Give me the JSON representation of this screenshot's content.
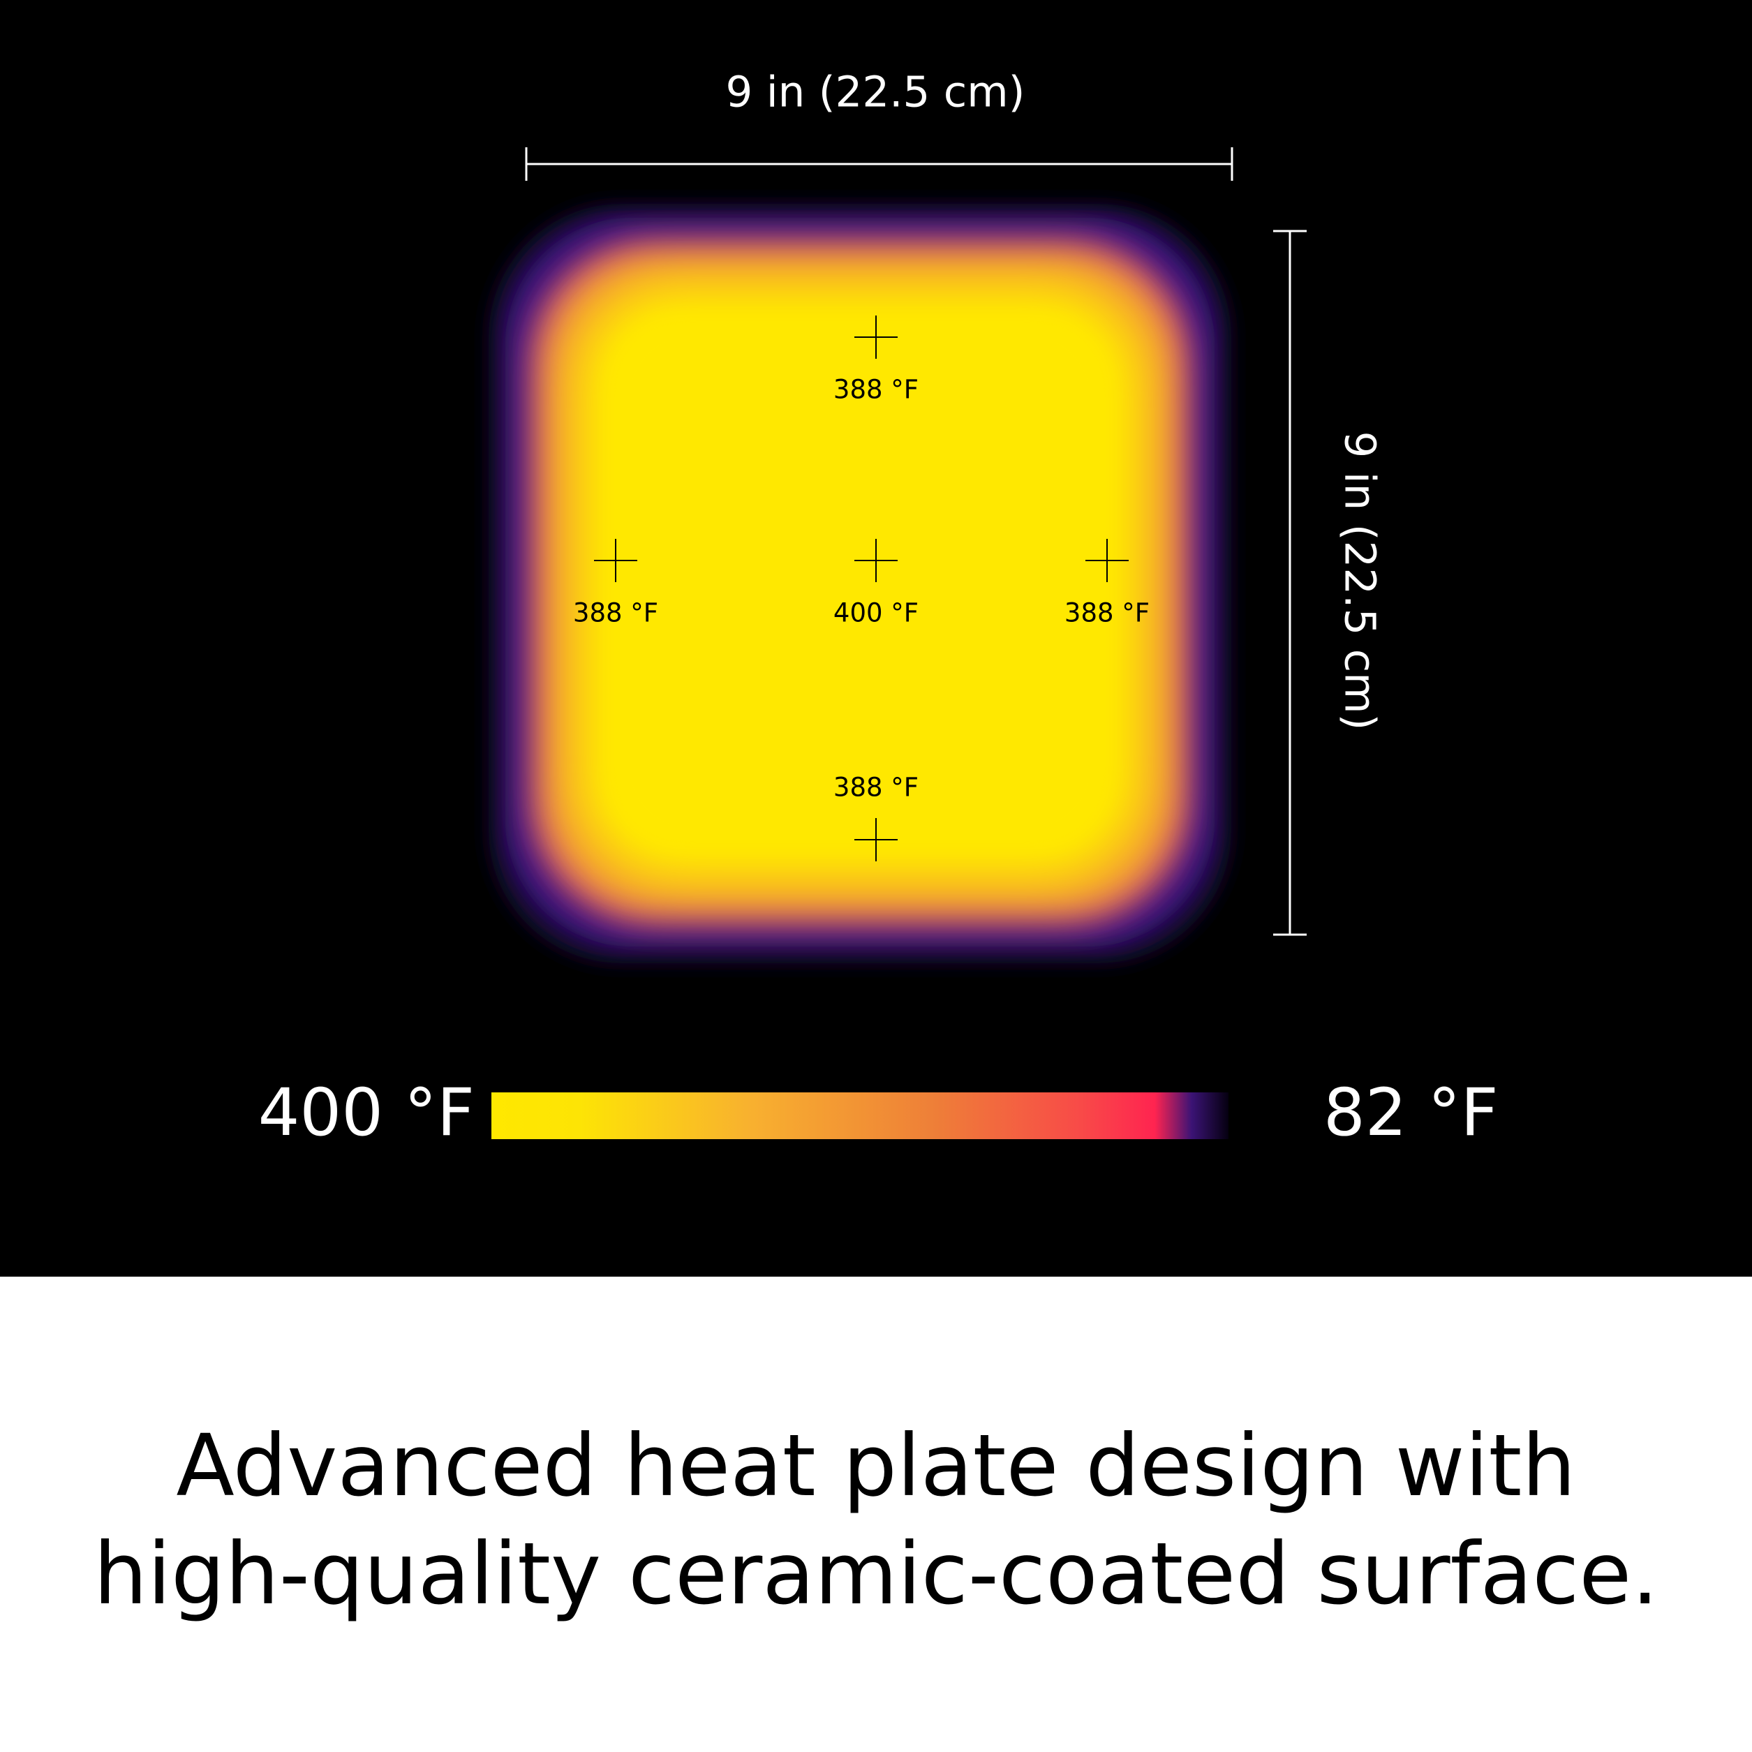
{
  "dimensions": {
    "width": "9 in (22.5 cm)",
    "height": "9 in (22.5 cm)"
  },
  "readings": [
    {
      "label": "388 °F"
    },
    {
      "label": "388 °F"
    },
    {
      "label": "400 °F"
    },
    {
      "label": "388 °F"
    },
    {
      "label": "388 °F"
    }
  ],
  "legend": {
    "max": "400 °F",
    "min": "82 °F"
  },
  "caption": [
    "Advanced heat plate design with",
    "high-quality ceramic-coated surface."
  ]
}
